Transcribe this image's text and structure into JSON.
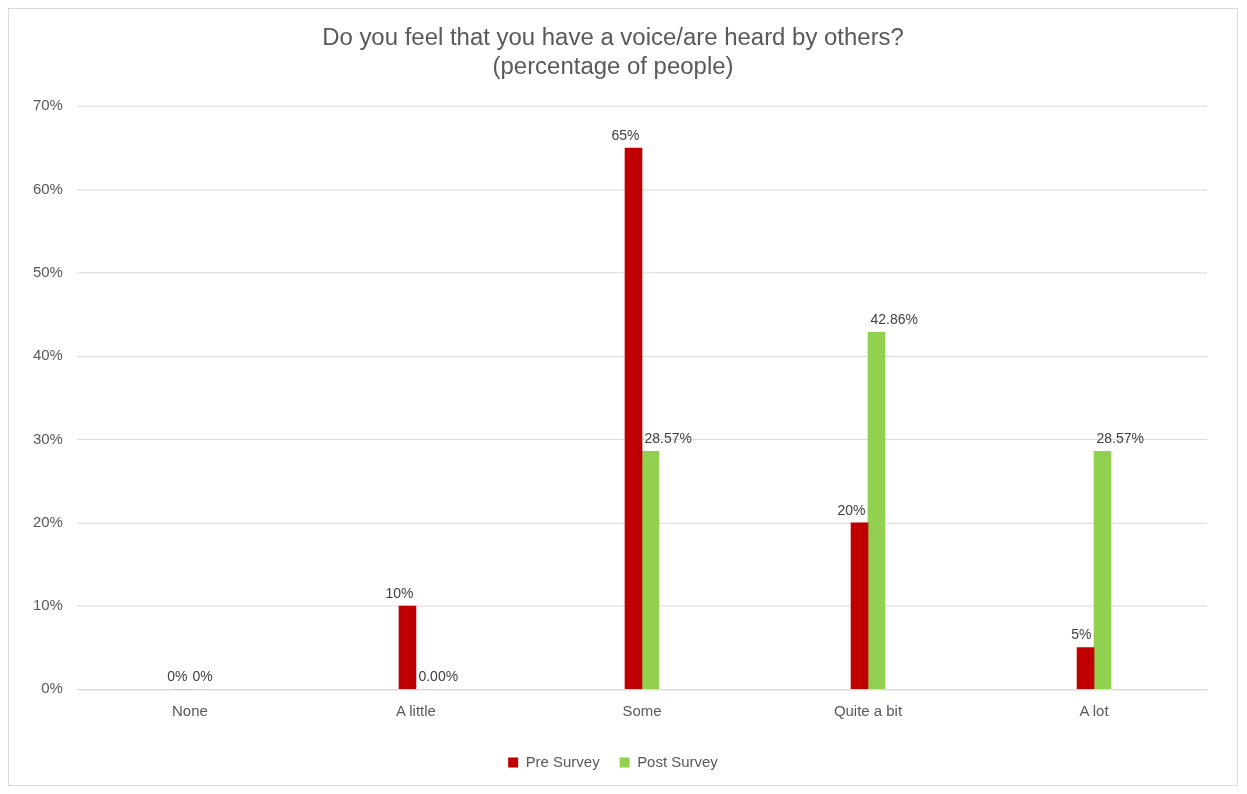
{
  "chart_data": {
    "type": "bar",
    "title": "Do you feel that you have a voice/are heard by others?\n(percentage of people)",
    "categories": [
      "None",
      "A little",
      "Some",
      "Quite a bit",
      "A lot"
    ],
    "series": [
      {
        "name": "Pre Survey",
        "color": "#c00000",
        "values": [
          0,
          10,
          65,
          20,
          5
        ],
        "value_labels": [
          "0%",
          "10%",
          "65%",
          "20%",
          "5%"
        ]
      },
      {
        "name": "Post Survey",
        "color": "#92d050",
        "values": [
          0,
          0,
          28.57,
          42.86,
          28.57
        ],
        "value_labels": [
          "0%",
          "0.00%",
          "28.57%",
          "42.86%",
          "28.57%"
        ]
      }
    ],
    "ylim": [
      0,
      70
    ],
    "yticks": [
      {
        "value": 0,
        "label": "0%"
      },
      {
        "value": 10,
        "label": "10%"
      },
      {
        "value": 20,
        "label": "20%"
      },
      {
        "value": 30,
        "label": "30%"
      },
      {
        "value": 40,
        "label": "40%"
      },
      {
        "value": 50,
        "label": "50%"
      },
      {
        "value": 60,
        "label": "60%"
      },
      {
        "value": 70,
        "label": "70%"
      }
    ],
    "grid": "y",
    "legend": "bottom"
  }
}
